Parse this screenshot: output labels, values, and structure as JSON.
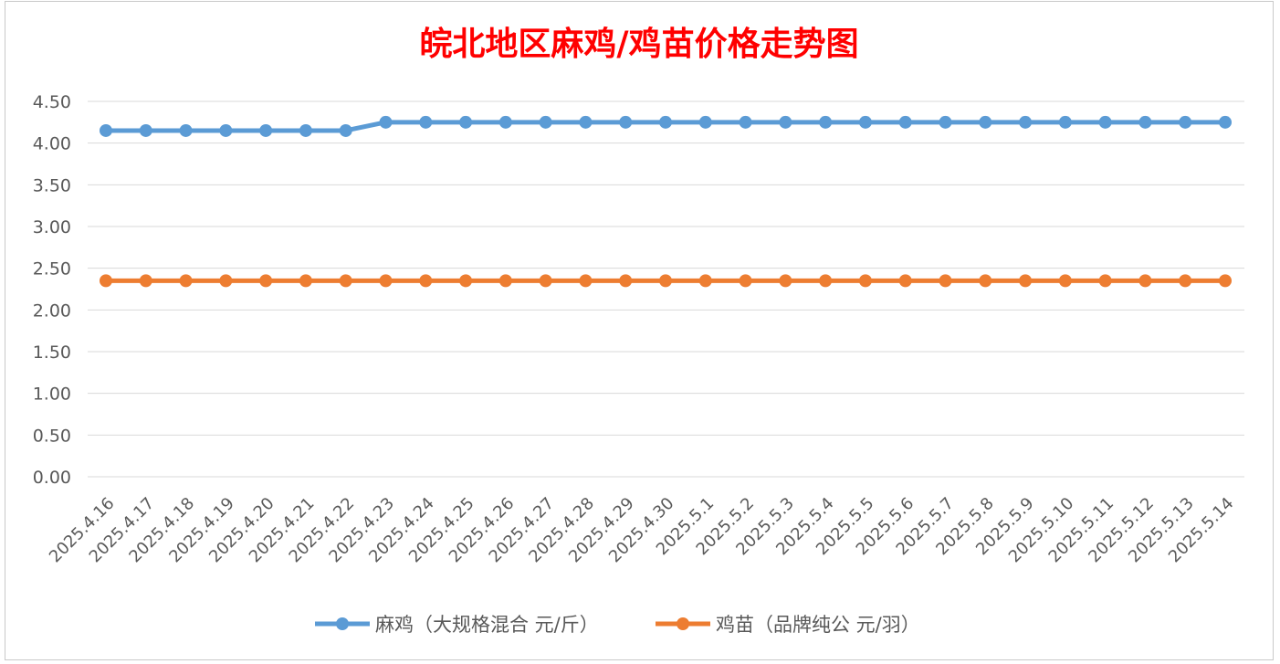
{
  "chart_data": {
    "type": "line",
    "title": "皖北地区麻鸡/鸡苗价格走势图",
    "xlabel": "",
    "ylabel": "",
    "ylim": [
      0,
      4.5
    ],
    "yticks": [
      "0.00",
      "0.50",
      "1.00",
      "1.50",
      "2.00",
      "2.50",
      "3.00",
      "3.50",
      "4.00",
      "4.50"
    ],
    "grid": true,
    "legend_position": "bottom",
    "categories": [
      "2025.4.16",
      "2025.4.17",
      "2025.4.18",
      "2025.4.19",
      "2025.4.20",
      "2025.4.21",
      "2025.4.22",
      "2025.4.23",
      "2025.4.24",
      "2025.4.25",
      "2025.4.26",
      "2025.4.27",
      "2025.4.28",
      "2025.4.29",
      "2025.4.30",
      "2025.5.1",
      "2025.5.2",
      "2025.5.3",
      "2025.5.4",
      "2025.5.5",
      "2025.5.6",
      "2025.5.7",
      "2025.5.8",
      "2025.5.9",
      "2025.5.10",
      "2025.5.11",
      "2025.5.12",
      "2025.5.13",
      "2025.5.14"
    ],
    "series": [
      {
        "name": "麻鸡（大规格混合 元/斤）",
        "color": "#5b9bd5",
        "values": [
          4.15,
          4.15,
          4.15,
          4.15,
          4.15,
          4.15,
          4.15,
          4.25,
          4.25,
          4.25,
          4.25,
          4.25,
          4.25,
          4.25,
          4.25,
          4.25,
          4.25,
          4.25,
          4.25,
          4.25,
          4.25,
          4.25,
          4.25,
          4.25,
          4.25,
          4.25,
          4.25,
          4.25,
          4.25
        ]
      },
      {
        "name": "鸡苗（品牌纯公 元/羽）",
        "color": "#ed7d31",
        "values": [
          2.35,
          2.35,
          2.35,
          2.35,
          2.35,
          2.35,
          2.35,
          2.35,
          2.35,
          2.35,
          2.35,
          2.35,
          2.35,
          2.35,
          2.35,
          2.35,
          2.35,
          2.35,
          2.35,
          2.35,
          2.35,
          2.35,
          2.35,
          2.35,
          2.35,
          2.35,
          2.35,
          2.35,
          2.35
        ]
      }
    ],
    "title_color": "#ff0000",
    "gridline_color": "#d9d9d9",
    "text_color": "#595959"
  }
}
